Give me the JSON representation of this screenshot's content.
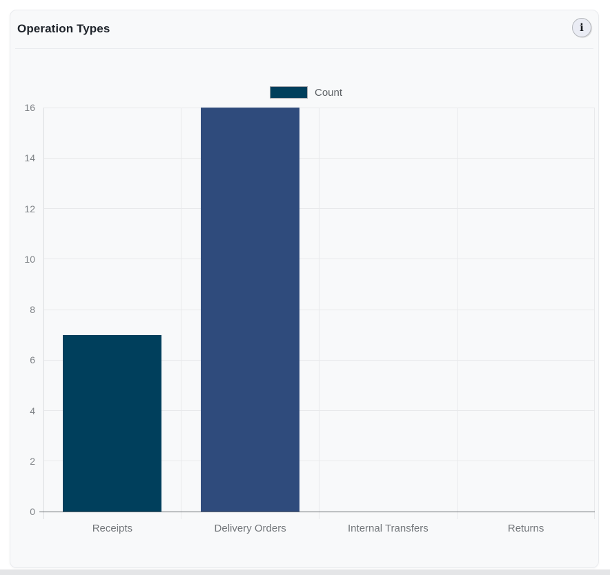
{
  "card": {
    "title": "Operation Types",
    "info_icon": "i"
  },
  "legend": {
    "label": "Count"
  },
  "chart_data": {
    "type": "bar",
    "title": "Operation Types",
    "categories": [
      "Receipts",
      "Delivery Orders",
      "Internal Transfers",
      "Returns"
    ],
    "series": [
      {
        "name": "Count",
        "values": [
          7,
          16,
          0,
          0
        ]
      }
    ],
    "bar_colors": [
      "#003f5c",
      "#2f4b7c",
      "#665191",
      "#a05195"
    ],
    "xlabel": "",
    "ylabel": "",
    "ylim": [
      0,
      16
    ],
    "yticks": [
      0,
      2,
      4,
      6,
      8,
      10,
      12,
      14,
      16
    ],
    "ytick_step": 2,
    "grid": true,
    "legend_position": "top"
  }
}
